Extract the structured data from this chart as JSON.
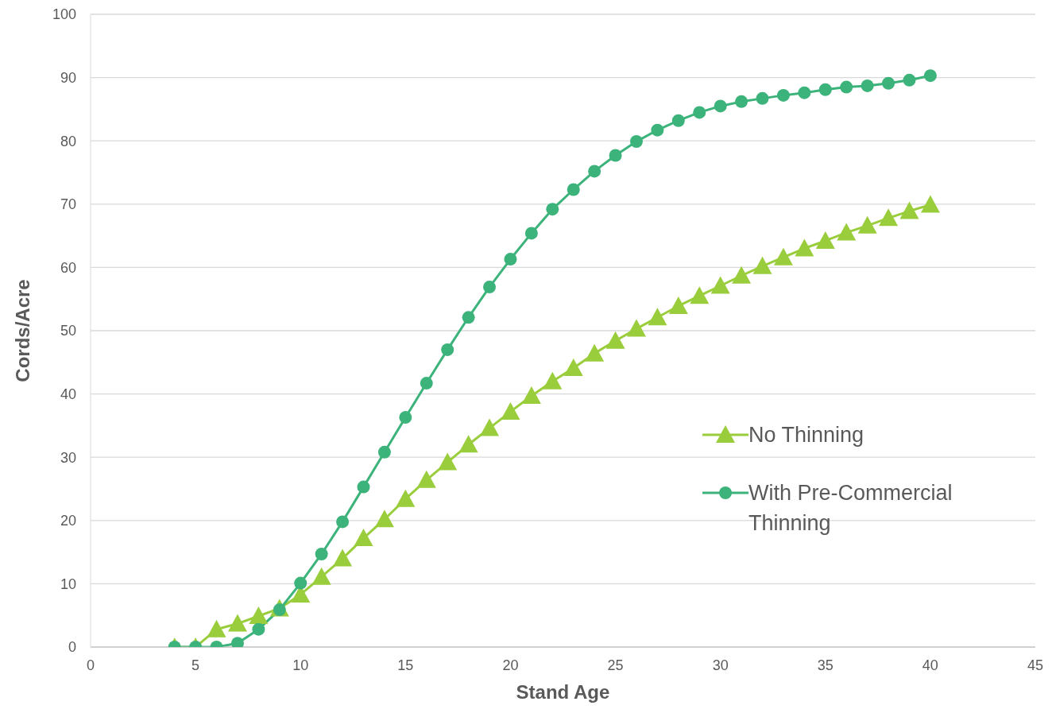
{
  "chart_data": {
    "type": "line",
    "xlabel": "Stand Age",
    "ylabel": "Cords/Acre",
    "x": [
      4,
      5,
      6,
      7,
      8,
      9,
      10,
      11,
      12,
      13,
      14,
      15,
      16,
      17,
      18,
      19,
      20,
      21,
      22,
      23,
      24,
      25,
      26,
      27,
      28,
      29,
      30,
      31,
      32,
      33,
      34,
      35,
      36,
      37,
      38,
      39,
      40
    ],
    "series": [
      {
        "name": "No Thinning",
        "color": "#9acd3c",
        "marker": "triangle",
        "values": [
          0,
          0,
          2.8,
          3.7,
          4.9,
          6.1,
          8.3,
          11.1,
          14.0,
          17.2,
          20.2,
          23.4,
          26.4,
          29.2,
          32.0,
          34.6,
          37.2,
          39.7,
          42.0,
          44.1,
          46.4,
          48.4,
          50.3,
          52.1,
          53.9,
          55.5,
          57.1,
          58.7,
          60.2,
          61.6,
          63.0,
          64.2,
          65.5,
          66.6,
          67.8,
          68.9,
          69.9
        ]
      },
      {
        "name": "With Pre-Commercial Thinning",
        "color": "#3cb37a",
        "marker": "circle",
        "values": [
          0,
          0,
          0,
          0.6,
          2.8,
          5.9,
          10.1,
          14.7,
          19.8,
          25.3,
          30.8,
          36.3,
          41.7,
          47.0,
          52.1,
          56.9,
          61.3,
          65.4,
          69.2,
          72.3,
          75.2,
          77.7,
          79.9,
          81.7,
          83.2,
          84.5,
          85.5,
          86.2,
          86.7,
          87.2,
          87.6,
          88.1,
          88.5,
          88.7,
          89.1,
          89.6,
          90.3
        ]
      }
    ],
    "xlim": [
      0,
      45
    ],
    "xticks": [
      0,
      5,
      10,
      15,
      20,
      25,
      30,
      35,
      40,
      45
    ],
    "ylim": [
      0,
      100
    ],
    "yticks": [
      0,
      10,
      20,
      30,
      40,
      50,
      60,
      70,
      80,
      90,
      100
    ],
    "grid": "y",
    "legend": "right",
    "line_style": "solid"
  }
}
